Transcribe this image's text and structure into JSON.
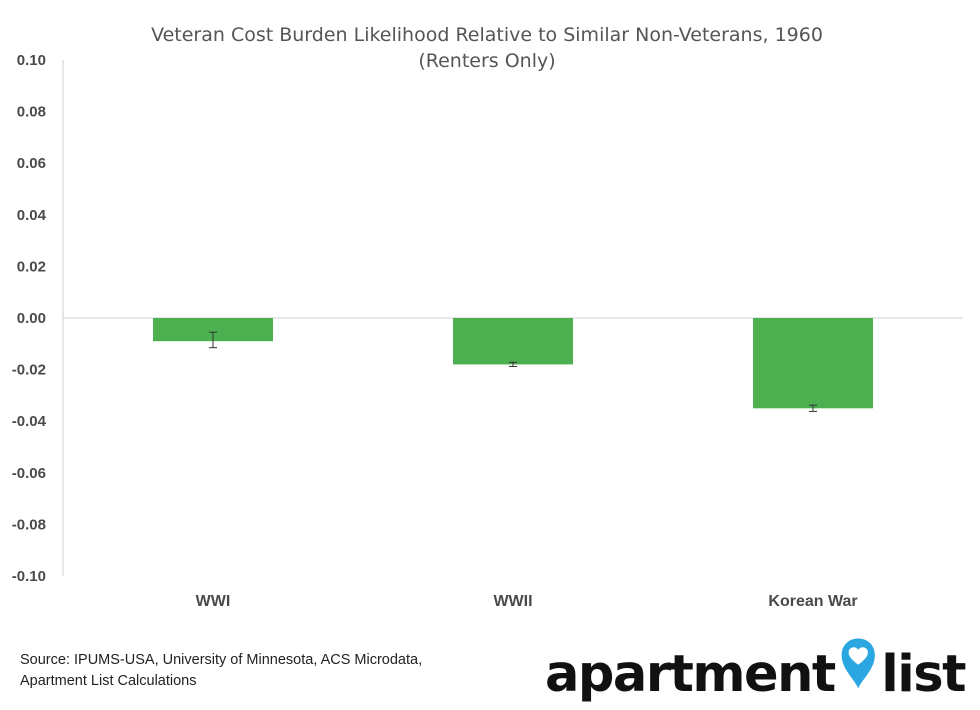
{
  "chart_data": {
    "type": "bar",
    "title": "Veteran Cost Burden Likelihood Relative to Similar Non-Veterans, 1960",
    "subtitle": "(Renters Only)",
    "categories": [
      "WWI",
      "WWII",
      "Korean War"
    ],
    "values": [
      -0.009,
      -0.018,
      -0.035
    ],
    "error_bars": [
      {
        "low": -0.0115,
        "high": -0.0055
      },
      {
        "low": -0.0188,
        "high": -0.0172
      },
      {
        "low": -0.0362,
        "high": -0.0338
      }
    ],
    "ylim": [
      -0.1,
      0.1
    ],
    "yticks": [
      "0.10",
      "0.08",
      "0.06",
      "0.04",
      "0.02",
      "0.00",
      "-0.02",
      "-0.04",
      "-0.06",
      "-0.08",
      "-0.10"
    ],
    "ytick_values": [
      0.1,
      0.08,
      0.06,
      0.04,
      0.02,
      0.0,
      -0.02,
      -0.04,
      -0.06,
      -0.08,
      -0.1
    ],
    "xlabel": "",
    "ylabel": "",
    "grid": false,
    "bar_color": "#4db050",
    "errorbar_color": "#333333"
  },
  "source": {
    "line1": "Source: IPUMS-USA, University of Minnesota, ACS Microdata,",
    "line2": "Apartment List Calculations"
  },
  "logo": {
    "word1": "apartment",
    "word2": "list",
    "pin_color": "#2aa7e0",
    "pin_icon": "map-pin-heart-icon"
  }
}
